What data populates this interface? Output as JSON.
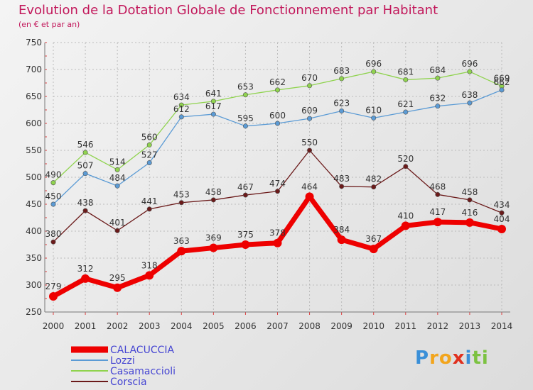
{
  "chart_data": {
    "type": "line",
    "title": "Evolution de la Dotation Globale de Fonctionnement par Habitant",
    "subtitle": "(en € et par an)",
    "xlabel": "",
    "ylabel": "",
    "ylim": [
      250,
      750
    ],
    "yticks": [
      250,
      300,
      350,
      400,
      450,
      500,
      550,
      600,
      650,
      700,
      750
    ],
    "grid": true,
    "legend_position": "bottom-left",
    "categories": [
      "2000",
      "2001",
      "2002",
      "2003",
      "2004",
      "2005",
      "2006",
      "2007",
      "2008",
      "2009",
      "2010",
      "2011",
      "2012",
      "2013",
      "2014"
    ],
    "series": [
      {
        "name": "Casamaccioli",
        "color": "#8fd34e",
        "values": [
          490,
          546,
          514,
          560,
          634,
          641,
          653,
          662,
          670,
          683,
          696,
          681,
          684,
          696,
          669
        ]
      },
      {
        "name": "Lozzi",
        "color": "#5b9bd5",
        "values": [
          450,
          507,
          484,
          527,
          612,
          617,
          595,
          600,
          609,
          623,
          610,
          621,
          632,
          638,
          662
        ]
      },
      {
        "name": "Corscia",
        "color": "#6b1a1a",
        "values": [
          380,
          438,
          401,
          441,
          453,
          458,
          467,
          474,
          550,
          483,
          482,
          520,
          468,
          458,
          434
        ]
      },
      {
        "name": "CALACUCCIA",
        "color": "#ee0000",
        "values": [
          279,
          312,
          295,
          318,
          363,
          369,
          375,
          378,
          464,
          384,
          367,
          410,
          417,
          416,
          404
        ]
      }
    ],
    "legend_order": [
      "CALACUCCIA",
      "Lozzi",
      "Casamaccioli",
      "Corscia"
    ]
  },
  "logo": {
    "text": "Proxiti",
    "letters": [
      "P",
      "r",
      "o",
      "x",
      "i",
      "t",
      "i"
    ],
    "colors": [
      "#3a8fd8",
      "#f2a51d",
      "#f2a51d",
      "#e0301e",
      "#3a8fd8",
      "#7cc242",
      "#7cc242"
    ]
  }
}
